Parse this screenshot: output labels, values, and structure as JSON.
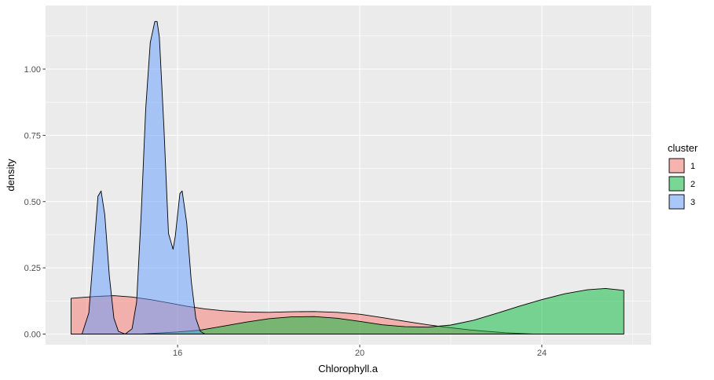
{
  "chart_data": {
    "type": "area",
    "subtype": "density",
    "title": "",
    "xlabel": "Chlorophyll.a",
    "ylabel": "density",
    "xlim": [
      13.1,
      26.4
    ],
    "ylim": [
      -0.04,
      1.24
    ],
    "x_ticks": [
      16,
      20,
      24
    ],
    "x_tick_labels": [
      "16",
      "20",
      "24"
    ],
    "y_ticks": [
      0,
      0.25,
      0.5,
      0.75,
      1.0
    ],
    "y_tick_labels": [
      "0.00",
      "0.25",
      "0.50",
      "0.75",
      "1.00"
    ],
    "grid": true,
    "legend": {
      "title": "cluster",
      "position": "right"
    },
    "series": [
      {
        "name": "1",
        "color": "#F8766D",
        "x": [
          13.66,
          14.2,
          14.6,
          15.0,
          15.4,
          15.8,
          16.2,
          16.6,
          17.0,
          17.5,
          18.0,
          18.5,
          19.0,
          19.5,
          20.0,
          20.5,
          21.0,
          21.5,
          21.8,
          22.1,
          22.4,
          22.8,
          23.2,
          23.8
        ],
        "values": [
          0.135,
          0.142,
          0.145,
          0.14,
          0.13,
          0.118,
          0.105,
          0.095,
          0.088,
          0.083,
          0.082,
          0.084,
          0.085,
          0.082,
          0.075,
          0.062,
          0.048,
          0.035,
          0.028,
          0.022,
          0.016,
          0.01,
          0.005,
          0.0
        ]
      },
      {
        "name": "2",
        "color": "#00BA38",
        "x": [
          15.2,
          16.0,
          16.5,
          17.0,
          17.5,
          18.0,
          18.5,
          19.0,
          19.5,
          20.0,
          20.5,
          21.0,
          21.5,
          22.0,
          22.5,
          23.0,
          23.5,
          24.0,
          24.5,
          25.0,
          25.4,
          25.8
        ],
        "values": [
          0.0,
          0.008,
          0.015,
          0.03,
          0.045,
          0.058,
          0.065,
          0.066,
          0.06,
          0.048,
          0.035,
          0.028,
          0.026,
          0.034,
          0.052,
          0.078,
          0.105,
          0.13,
          0.152,
          0.167,
          0.172,
          0.165
        ]
      },
      {
        "name": "3",
        "color": "#619CFF",
        "x": [
          13.9,
          14.05,
          14.15,
          14.25,
          14.32,
          14.4,
          14.5,
          14.6,
          14.7,
          14.85,
          15.0,
          15.1,
          15.2,
          15.3,
          15.4,
          15.5,
          15.55,
          15.6,
          15.7,
          15.8,
          15.9,
          15.95,
          16.05,
          16.1,
          16.2,
          16.3,
          16.4,
          16.5,
          16.6
        ],
        "values": [
          0.0,
          0.08,
          0.3,
          0.52,
          0.54,
          0.45,
          0.22,
          0.06,
          0.01,
          0.0,
          0.02,
          0.12,
          0.45,
          0.85,
          1.1,
          1.18,
          1.18,
          1.12,
          0.78,
          0.38,
          0.32,
          0.37,
          0.53,
          0.54,
          0.42,
          0.2,
          0.06,
          0.01,
          0.0
        ]
      }
    ]
  }
}
